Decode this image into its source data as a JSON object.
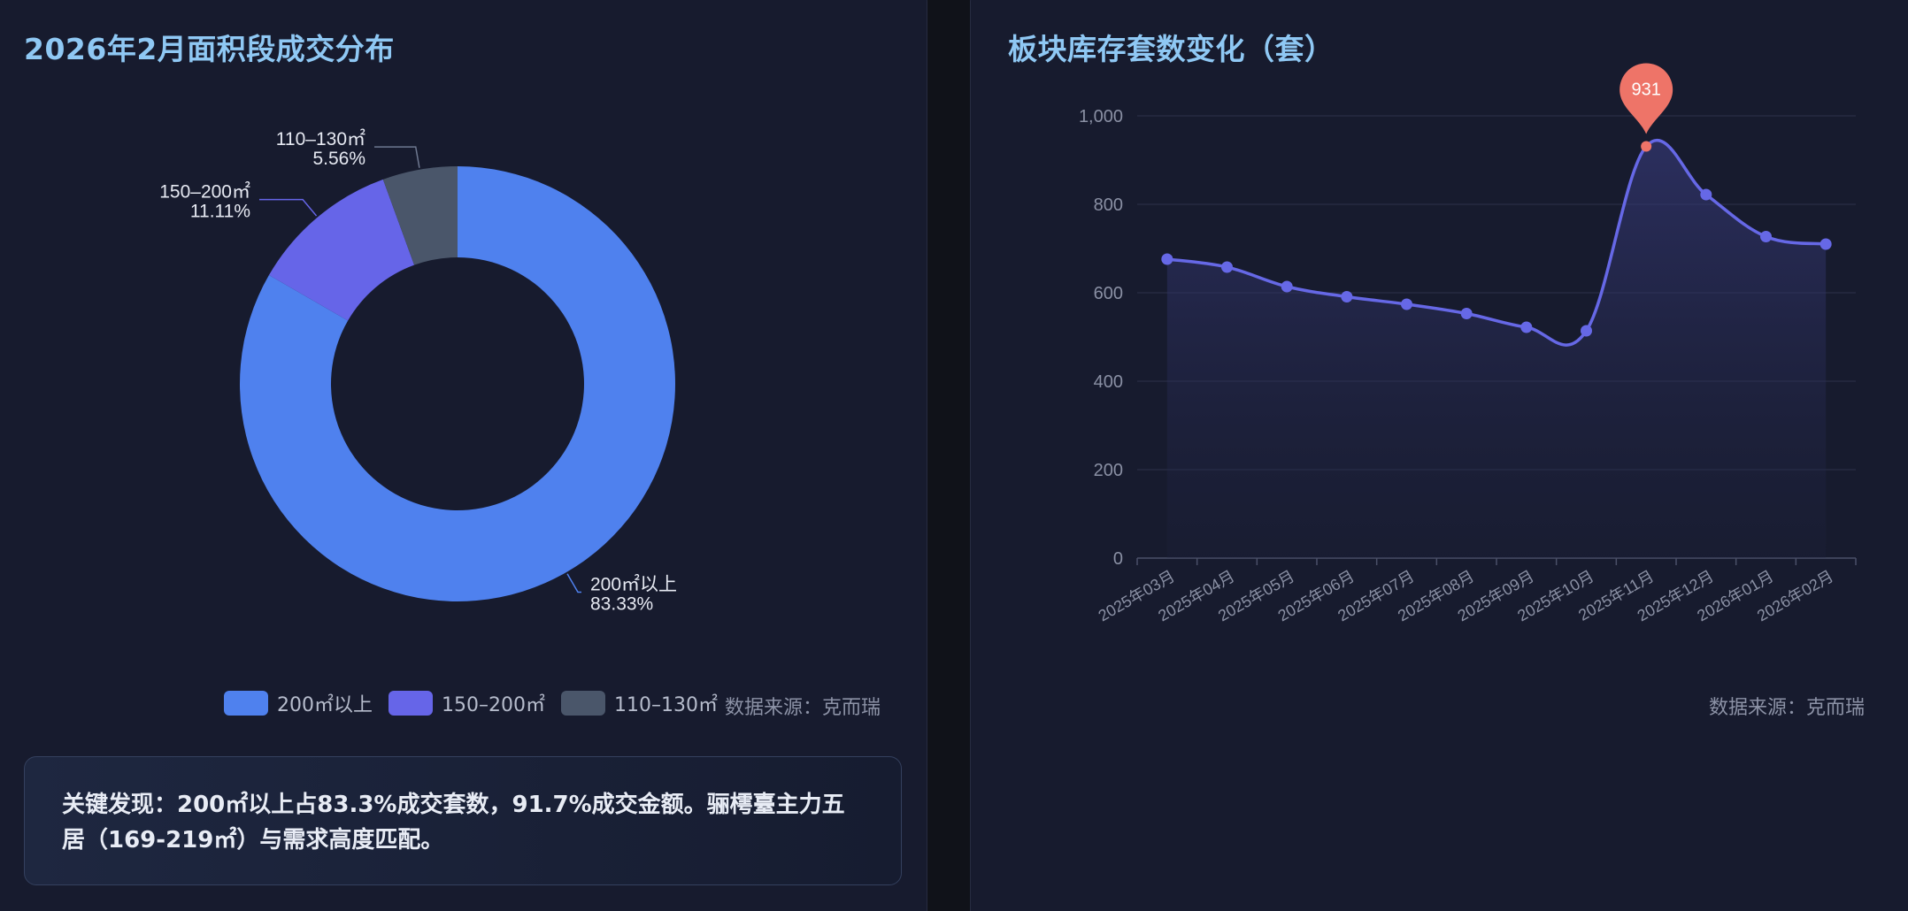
{
  "left_panel": {
    "title": "2026年2月面积段成交分布",
    "source": "数据来源：克而瑞",
    "finding": "关键发现：200㎡以上占83.3%成交套数，91.7%成交金额。骊樗臺主力五居（169-219㎡）与需求高度匹配。"
  },
  "right_panel": {
    "title": "板块库存套数变化（套）",
    "source": "数据来源：克而瑞"
  },
  "colors": {
    "slice_200_plus": "#4f81ee",
    "slice_150_200": "#6665e8",
    "slice_110_130": "#4a566a",
    "line": "#6668e6",
    "peak_marker": "#ee7468"
  },
  "chart_data": [
    {
      "type": "pie",
      "title": "2026年2月面积段成交分布",
      "donut": true,
      "legend_position": "bottom",
      "slices": [
        {
          "label": "200㎡以上",
          "value": 83.33,
          "percent_label": "83.33%"
        },
        {
          "label": "150–200㎡",
          "value": 11.11,
          "percent_label": "11.11%"
        },
        {
          "label": "110–130㎡",
          "value": 5.56,
          "percent_label": "5.56%"
        }
      ]
    },
    {
      "type": "area",
      "title": "板块库存套数变化（套）",
      "smooth": true,
      "grid": true,
      "ylim": [
        0,
        1000
      ],
      "y_ticks": [
        0,
        200,
        400,
        600,
        800,
        1000
      ],
      "y_tick_labels": [
        "0",
        "200",
        "400",
        "600",
        "800",
        "1,000"
      ],
      "categories": [
        "2025年03月",
        "2025年04月",
        "2025年05月",
        "2025年06月",
        "2025年07月",
        "2025年08月",
        "2025年09月",
        "2025年10月",
        "2025年11月",
        "2025年12月",
        "2026年01月",
        "2026年02月"
      ],
      "values": [
        676,
        658,
        614,
        591,
        574,
        553,
        522,
        514,
        931,
        822,
        727,
        710
      ],
      "markpoint": {
        "label": "931",
        "index": 8
      }
    }
  ]
}
